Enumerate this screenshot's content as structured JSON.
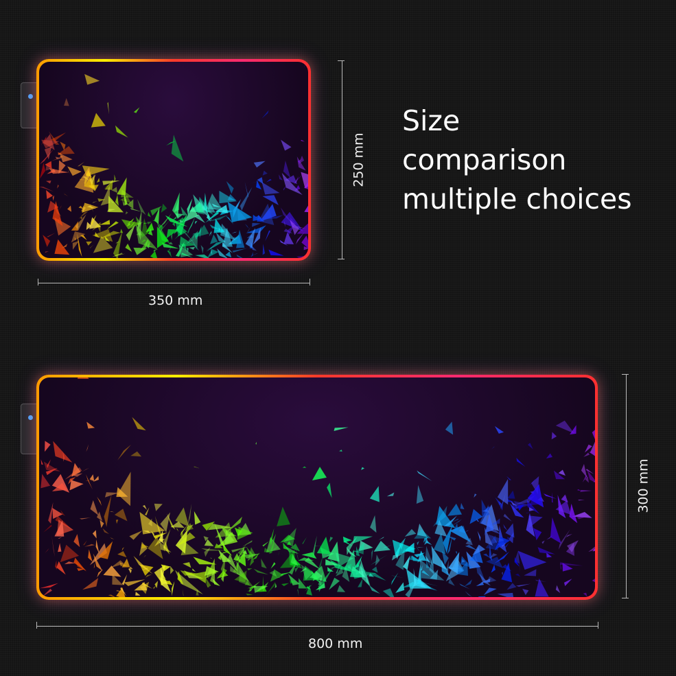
{
  "headline": {
    "line1": "Size",
    "line2": "comparison",
    "line3": "multiple choices"
  },
  "small_mat": {
    "width_label": "350 mm",
    "height_label": "250 mm"
  },
  "large_mat": {
    "width_label": "800 mm",
    "height_label": "300 mm"
  },
  "colors": {
    "background": "#141414",
    "mat_base": "#16061f",
    "text": "#ffffff"
  }
}
